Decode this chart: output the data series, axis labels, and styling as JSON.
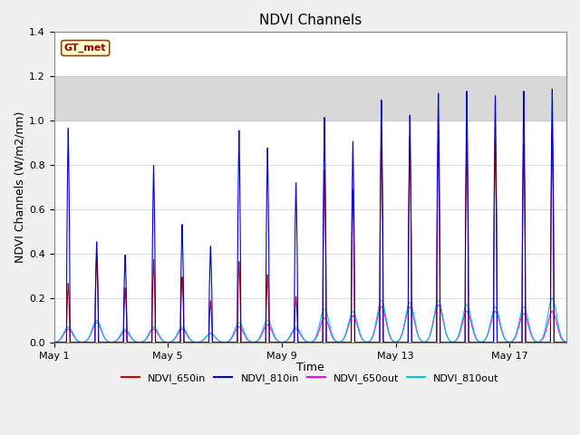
{
  "title": "NDVI Channels",
  "xlabel": "Time",
  "ylabel": "NDVI Channels (W/m2/nm)",
  "ylim": [
    0.0,
    1.4
  ],
  "yticks": [
    0.0,
    0.2,
    0.4,
    0.6,
    0.8,
    1.0,
    1.2,
    1.4
  ],
  "annotation_text": "GT_met",
  "legend_labels": [
    "NDVI_650in",
    "NDVI_810in",
    "NDVI_650out",
    "NDVI_810out"
  ],
  "line_colors": [
    "#cc0000",
    "#0000cc",
    "#ff00ff",
    "#00cccc"
  ],
  "shaded_band": [
    1.0,
    1.2
  ],
  "shaded_color": "#d8d8d8",
  "background_color": "#f0f0f0",
  "plot_background": "#ffffff",
  "title_fontsize": 11,
  "axis_fontsize": 9,
  "tick_fontsize": 8,
  "num_days": 18,
  "samples_per_day": 288,
  "xtick_days": [
    0,
    4,
    8,
    12,
    16
  ],
  "xtick_labels": [
    "May 1",
    "May 5",
    "May 9",
    "May 13",
    "May 17"
  ],
  "peaks_810in": [
    0.98,
    0.46,
    0.4,
    0.81,
    0.54,
    0.44,
    0.97,
    0.89,
    0.73,
    1.03,
    0.92,
    1.11,
    1.04,
    1.14,
    1.15,
    1.13,
    1.15,
    1.16
  ],
  "peaks_650in": [
    0.27,
    0.4,
    0.25,
    0.38,
    0.3,
    0.19,
    0.37,
    0.31,
    0.21,
    0.79,
    0.7,
    0.97,
    0.94,
    0.97,
    0.93,
    0.93,
    0.91,
    0.97
  ],
  "peaks_650out": [
    0.06,
    0.09,
    0.05,
    0.06,
    0.06,
    0.04,
    0.07,
    0.08,
    0.06,
    0.11,
    0.12,
    0.16,
    0.16,
    0.17,
    0.14,
    0.14,
    0.13,
    0.14
  ],
  "peaks_810out": [
    0.07,
    0.1,
    0.06,
    0.07,
    0.07,
    0.04,
    0.09,
    0.1,
    0.07,
    0.15,
    0.14,
    0.19,
    0.18,
    0.19,
    0.17,
    0.16,
    0.16,
    0.2
  ]
}
